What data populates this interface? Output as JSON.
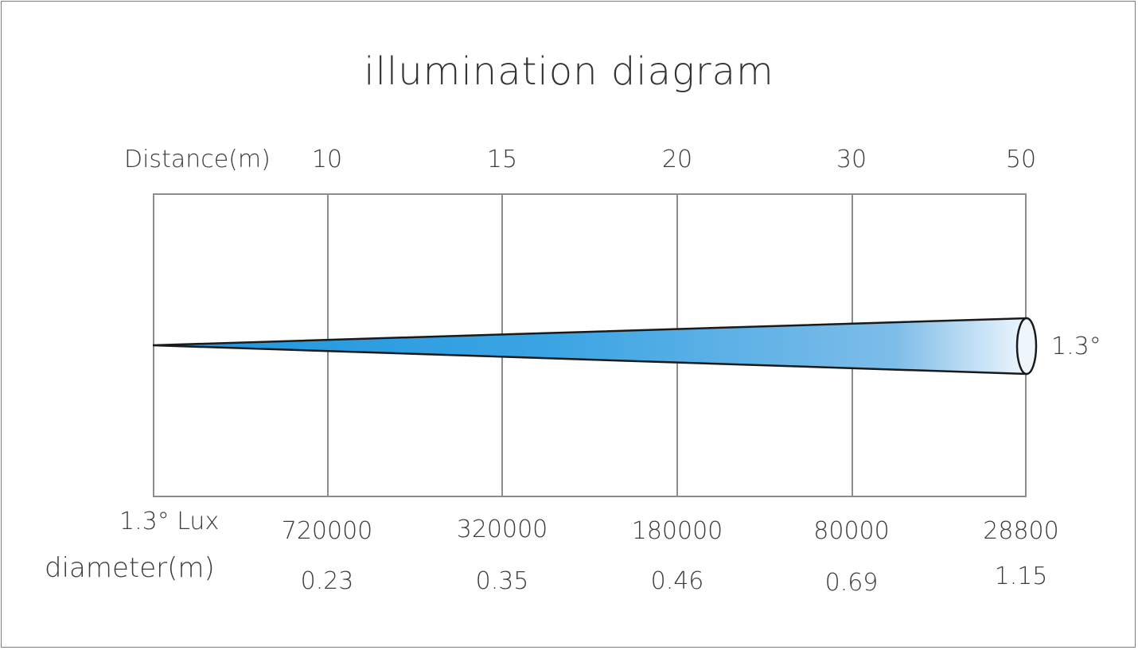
{
  "title": "illumination  diagram",
  "distance_label": "Distance(m)",
  "distances": [
    "10",
    "15",
    "20",
    "30",
    "50"
  ],
  "beam_angle": "1.3°",
  "lux_label": "1.3° Lux",
  "lux_values": [
    "720000",
    "320000",
    "180000",
    "80000",
    "28800"
  ],
  "diameter_label": "diameter(m)",
  "diameters": [
    "0.23",
    "0.35",
    "0.46",
    "0.69",
    "1.15"
  ],
  "colors": {
    "beam_start": "#1f96de",
    "beam_mid": "#5fb1e6",
    "beam_end": "#eaf4fb",
    "grid": "#8c8c8c"
  }
}
